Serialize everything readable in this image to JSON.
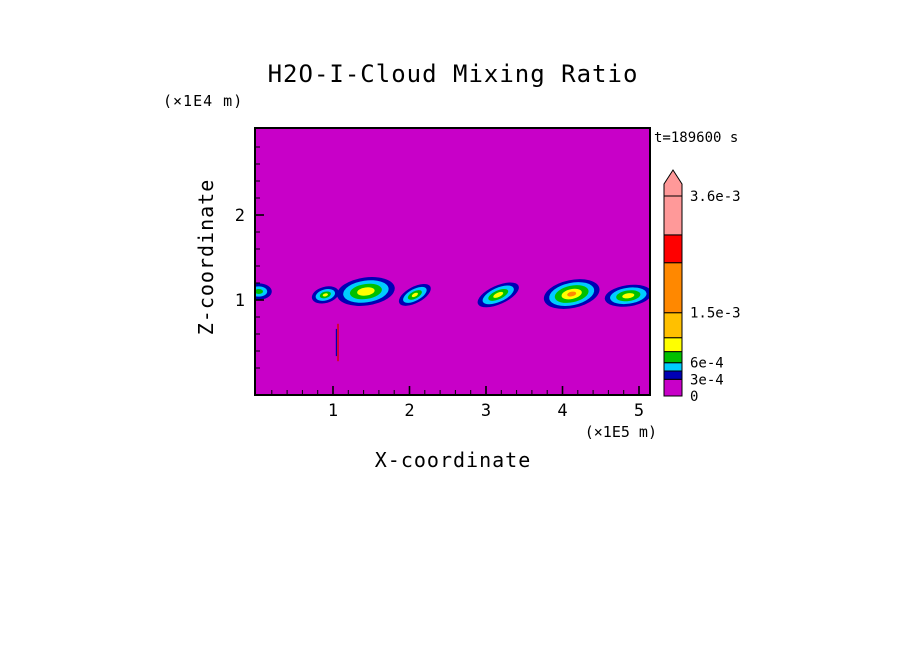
{
  "title": "H2O-I-Cloud Mixing Ratio",
  "annotation": "t=189600 s",
  "axes": {
    "x": {
      "label": "X-coordinate",
      "unit": "(×1E5 m)",
      "ticks": [
        1,
        2,
        3,
        4,
        5
      ],
      "tick_labels": [
        "1",
        "2",
        "3",
        "4",
        "5"
      ],
      "minor_interval": 0.2,
      "range": [
        0,
        5.14
      ]
    },
    "z": {
      "label": "Z-coordinate",
      "unit": "(×1E4 m)",
      "ticks": [
        1,
        2
      ],
      "tick_labels": [
        "1",
        "2"
      ],
      "minor_interval": 0.2,
      "range": [
        0,
        3.02
      ]
    }
  },
  "colorbar": {
    "ticks": [
      {
        "value": 0.0036,
        "label": "3.6e-3"
      },
      {
        "value": 0.0015,
        "label": "1.5e-3"
      },
      {
        "value": 0.0006,
        "label": "6e-4"
      },
      {
        "value": 0.0003,
        "label": "3e-4"
      },
      {
        "value": 0,
        "label": "0"
      }
    ]
  },
  "chart_data": {
    "type": "heatmap",
    "title": "H2O-I-Cloud Mixing Ratio",
    "time_annotation": "t=189600 s",
    "time_seconds": 189600,
    "xlabel": "X-coordinate (×1E5 m)",
    "ylabel": "Z-coordinate (×1E4 m)",
    "x_range": [
      0,
      5.14
    ],
    "z_range": [
      0,
      3.02
    ],
    "background_value": 0,
    "background_color": "#C800C8",
    "levels": [
      0,
      0.0003,
      0.00045,
      0.0006,
      0.0008,
      0.00105,
      0.0015,
      0.0024,
      0.0029,
      0.0036
    ],
    "level_colors": [
      "#C800C8",
      "#0000B4",
      "#00CCFF",
      "#00C000",
      "#FFFF00",
      "#FFC000",
      "#FF8800",
      "#FF0000",
      "#FF9999"
    ],
    "overflow_color": "#FF9999",
    "clouds": [
      {
        "x": 0.03,
        "z": 1.1,
        "rot": 0,
        "layers": [
          {
            "color": "#0000B4",
            "rx": 0.17,
            "rz": 0.095
          },
          {
            "color": "#00CCFF",
            "rx": 0.11,
            "rz": 0.06
          },
          {
            "color": "#00C000",
            "rx": 0.055,
            "rz": 0.03
          }
        ]
      },
      {
        "x": 0.9,
        "z": 1.06,
        "rot": -15,
        "layers": [
          {
            "color": "#0000B4",
            "rx": 0.18,
            "rz": 0.095
          },
          {
            "color": "#00CCFF",
            "rx": 0.13,
            "rz": 0.065
          },
          {
            "color": "#00C000",
            "rx": 0.075,
            "rz": 0.038
          },
          {
            "color": "#FFFF00",
            "rx": 0.035,
            "rz": 0.018
          }
        ]
      },
      {
        "x": 1.43,
        "z": 1.1,
        "rot": -8,
        "layers": [
          {
            "color": "#0000B4",
            "rx": 0.38,
            "rz": 0.165
          },
          {
            "color": "#00CCFF",
            "rx": 0.3,
            "rz": 0.128
          },
          {
            "color": "#00C000",
            "rx": 0.21,
            "rz": 0.088
          },
          {
            "color": "#FFFF00",
            "rx": 0.115,
            "rz": 0.048
          }
        ]
      },
      {
        "x": 2.07,
        "z": 1.06,
        "rot": -28,
        "layers": [
          {
            "color": "#0000B4",
            "rx": 0.23,
            "rz": 0.095
          },
          {
            "color": "#00CCFF",
            "rx": 0.17,
            "rz": 0.068
          },
          {
            "color": "#00C000",
            "rx": 0.1,
            "rz": 0.042
          },
          {
            "color": "#FFFF00",
            "rx": 0.045,
            "rz": 0.02
          }
        ]
      },
      {
        "x": 3.16,
        "z": 1.06,
        "rot": -24,
        "layers": [
          {
            "color": "#0000B4",
            "rx": 0.29,
            "rz": 0.11
          },
          {
            "color": "#00CCFF",
            "rx": 0.22,
            "rz": 0.082
          },
          {
            "color": "#00C000",
            "rx": 0.14,
            "rz": 0.052
          },
          {
            "color": "#FFFF00",
            "rx": 0.07,
            "rz": 0.026
          }
        ]
      },
      {
        "x": 4.12,
        "z": 1.07,
        "rot": -12,
        "layers": [
          {
            "color": "#0000B4",
            "rx": 0.37,
            "rz": 0.165
          },
          {
            "color": "#00CCFF",
            "rx": 0.3,
            "rz": 0.132
          },
          {
            "color": "#00C000",
            "rx": 0.225,
            "rz": 0.098
          },
          {
            "color": "#FFFF00",
            "rx": 0.135,
            "rz": 0.058
          },
          {
            "color": "#FF8800",
            "rx": 0.06,
            "rz": 0.027
          }
        ]
      },
      {
        "x": 4.86,
        "z": 1.05,
        "rot": -8,
        "layers": [
          {
            "color": "#0000B4",
            "rx": 0.31,
            "rz": 0.125
          },
          {
            "color": "#00CCFF",
            "rx": 0.24,
            "rz": 0.094
          },
          {
            "color": "#00C000",
            "rx": 0.16,
            "rz": 0.062
          },
          {
            "color": "#FFFF00",
            "rx": 0.08,
            "rz": 0.03
          }
        ]
      }
    ],
    "streaks": [
      {
        "x": 1.065,
        "z_from": 0.28,
        "z_to": 0.72,
        "width": 0.018,
        "color": "#DD0000"
      },
      {
        "x": 1.045,
        "z_from": 0.34,
        "z_to": 0.66,
        "width": 0.012,
        "color": "#0000B4"
      }
    ]
  }
}
